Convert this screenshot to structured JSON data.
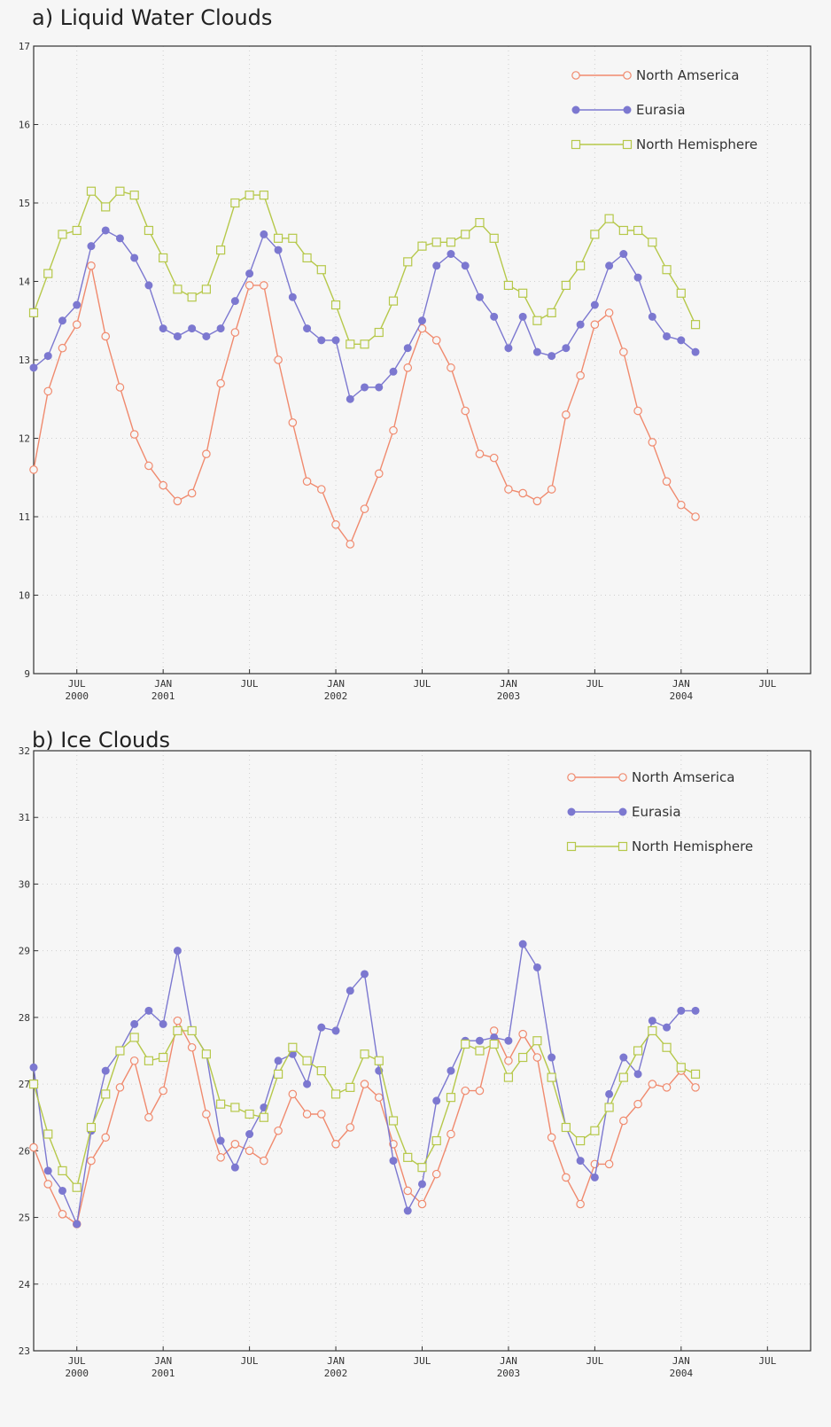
{
  "chart_data": [
    {
      "type": "line",
      "title": "a) Liquid Water Clouds",
      "xlabel": "",
      "ylabel": "",
      "ylim": [
        9,
        17
      ],
      "yticks": [
        9,
        10,
        11,
        12,
        13,
        14,
        15,
        16,
        17
      ],
      "xlim": [
        2000.25,
        2004.75
      ],
      "xticks": [
        {
          "label": "JUL",
          "year": "2000",
          "x": 2000.5
        },
        {
          "label": "JAN",
          "year": "2001",
          "x": 2001.0
        },
        {
          "label": "JUL",
          "year": "",
          "x": 2001.5
        },
        {
          "label": "JAN",
          "year": "2002",
          "x": 2002.0
        },
        {
          "label": "JUL",
          "year": "",
          "x": 2002.5
        },
        {
          "label": "JAN",
          "year": "2003",
          "x": 2003.0
        },
        {
          "label": "JUL",
          "year": "",
          "x": 2003.5
        },
        {
          "label": "JAN",
          "year": "2004",
          "x": 2004.0
        },
        {
          "label": "JUL",
          "year": "",
          "x": 2004.5
        }
      ],
      "x_start": 2000.25,
      "x_step": 0.08333,
      "grid": true,
      "legend": "top-right",
      "series": [
        {
          "name": "North Amserica",
          "color": "#f08a6e",
          "marker": "open-circle",
          "values": [
            11.6,
            12.6,
            13.15,
            13.45,
            14.2,
            13.3,
            12.65,
            12.05,
            11.65,
            11.4,
            11.2,
            11.3,
            11.8,
            12.7,
            13.35,
            13.95,
            13.95,
            13.0,
            12.2,
            11.45,
            11.35,
            10.9,
            10.65,
            11.1,
            11.55,
            12.1,
            12.9,
            13.4,
            13.25,
            12.9,
            12.35,
            11.8,
            11.75,
            11.35,
            11.3,
            11.2,
            11.35,
            12.3,
            12.8,
            13.45,
            13.6,
            13.1,
            12.35,
            11.95,
            11.45,
            11.15,
            11.0
          ]
        },
        {
          "name": "Eurasia",
          "color": "#7c78d0",
          "marker": "filled-circle",
          "values": [
            12.9,
            13.05,
            13.5,
            13.7,
            14.45,
            14.65,
            14.55,
            14.3,
            13.95,
            13.4,
            13.3,
            13.4,
            13.3,
            13.4,
            13.75,
            14.1,
            14.6,
            14.4,
            13.8,
            13.4,
            13.25,
            13.25,
            12.5,
            12.65,
            12.65,
            12.85,
            13.15,
            13.5,
            14.2,
            14.35,
            14.2,
            13.8,
            13.55,
            13.15,
            13.55,
            13.1,
            13.05,
            13.15,
            13.45,
            13.7,
            14.2,
            14.35,
            14.05,
            13.55,
            13.3,
            13.25,
            13.1
          ]
        },
        {
          "name": "North Hemisphere",
          "color": "#b6c84a",
          "marker": "open-square",
          "values": [
            13.6,
            14.1,
            14.6,
            14.65,
            15.15,
            14.95,
            15.15,
            15.1,
            14.65,
            14.3,
            13.9,
            13.8,
            13.9,
            14.4,
            15.0,
            15.1,
            15.1,
            14.55,
            14.55,
            14.3,
            14.15,
            13.7,
            13.2,
            13.2,
            13.35,
            13.75,
            14.25,
            14.45,
            14.5,
            14.5,
            14.6,
            14.75,
            14.55,
            13.95,
            13.85,
            13.5,
            13.6,
            13.95,
            14.2,
            14.6,
            14.8,
            14.65,
            14.65,
            14.5,
            14.15,
            13.85,
            13.45
          ]
        }
      ]
    },
    {
      "type": "line",
      "title": "b) Ice Clouds",
      "xlabel": "",
      "ylabel": "",
      "ylim": [
        23,
        32
      ],
      "yticks": [
        23,
        24,
        25,
        26,
        27,
        28,
        29,
        30,
        31,
        32
      ],
      "xlim": [
        2000.25,
        2004.75
      ],
      "xticks": [
        {
          "label": "JUL",
          "year": "2000",
          "x": 2000.5
        },
        {
          "label": "JAN",
          "year": "2001",
          "x": 2001.0
        },
        {
          "label": "JUL",
          "year": "",
          "x": 2001.5
        },
        {
          "label": "JAN",
          "year": "2002",
          "x": 2002.0
        },
        {
          "label": "JUL",
          "year": "",
          "x": 2002.5
        },
        {
          "label": "JAN",
          "year": "2003",
          "x": 2003.0
        },
        {
          "label": "JUL",
          "year": "",
          "x": 2003.5
        },
        {
          "label": "JAN",
          "year": "2004",
          "x": 2004.0
        },
        {
          "label": "JUL",
          "year": "",
          "x": 2004.5
        }
      ],
      "x_start": 2000.25,
      "x_step": 0.08333,
      "grid": true,
      "legend": "top-right",
      "series": [
        {
          "name": "North Amserica",
          "color": "#f08a6e",
          "marker": "open-circle",
          "values": [
            26.05,
            25.5,
            25.05,
            24.9,
            25.85,
            26.2,
            26.95,
            27.35,
            26.5,
            26.9,
            27.95,
            27.55,
            26.55,
            25.9,
            26.1,
            26.0,
            25.85,
            26.3,
            26.85,
            26.55,
            26.55,
            26.1,
            26.35,
            27.0,
            26.8,
            26.1,
            25.4,
            25.2,
            25.65,
            26.25,
            26.9,
            26.9,
            27.8,
            27.35,
            27.75,
            27.4,
            26.2,
            25.6,
            25.2,
            25.8,
            25.8,
            26.45,
            26.7,
            27.0,
            26.95,
            27.2,
            26.95
          ]
        },
        {
          "name": "Eurasia",
          "color": "#7c78d0",
          "marker": "filled-circle",
          "values": [
            27.25,
            25.7,
            25.4,
            24.9,
            26.3,
            27.2,
            27.5,
            27.9,
            28.1,
            27.9,
            29.0,
            27.8,
            27.45,
            26.15,
            25.75,
            26.25,
            26.65,
            27.35,
            27.45,
            27.0,
            27.85,
            27.8,
            28.4,
            28.65,
            27.2,
            25.85,
            25.1,
            25.5,
            26.75,
            27.2,
            27.65,
            27.65,
            27.7,
            27.65,
            29.1,
            28.75,
            27.4,
            26.35,
            25.85,
            25.6,
            26.85,
            27.4,
            27.15,
            27.95,
            27.85,
            28.1,
            28.1
          ]
        },
        {
          "name": "North Hemisphere",
          "color": "#b6c84a",
          "marker": "open-square",
          "values": [
            27.0,
            26.25,
            25.7,
            25.45,
            26.35,
            26.85,
            27.5,
            27.7,
            27.35,
            27.4,
            27.8,
            27.8,
            27.45,
            26.7,
            26.65,
            26.55,
            26.5,
            27.15,
            27.55,
            27.35,
            27.2,
            26.85,
            26.95,
            27.45,
            27.35,
            26.45,
            25.9,
            25.75,
            26.15,
            26.8,
            27.6,
            27.5,
            27.6,
            27.1,
            27.4,
            27.65,
            27.1,
            26.35,
            26.15,
            26.3,
            26.65,
            27.1,
            27.5,
            27.8,
            27.55,
            27.25,
            27.15
          ]
        }
      ]
    }
  ]
}
